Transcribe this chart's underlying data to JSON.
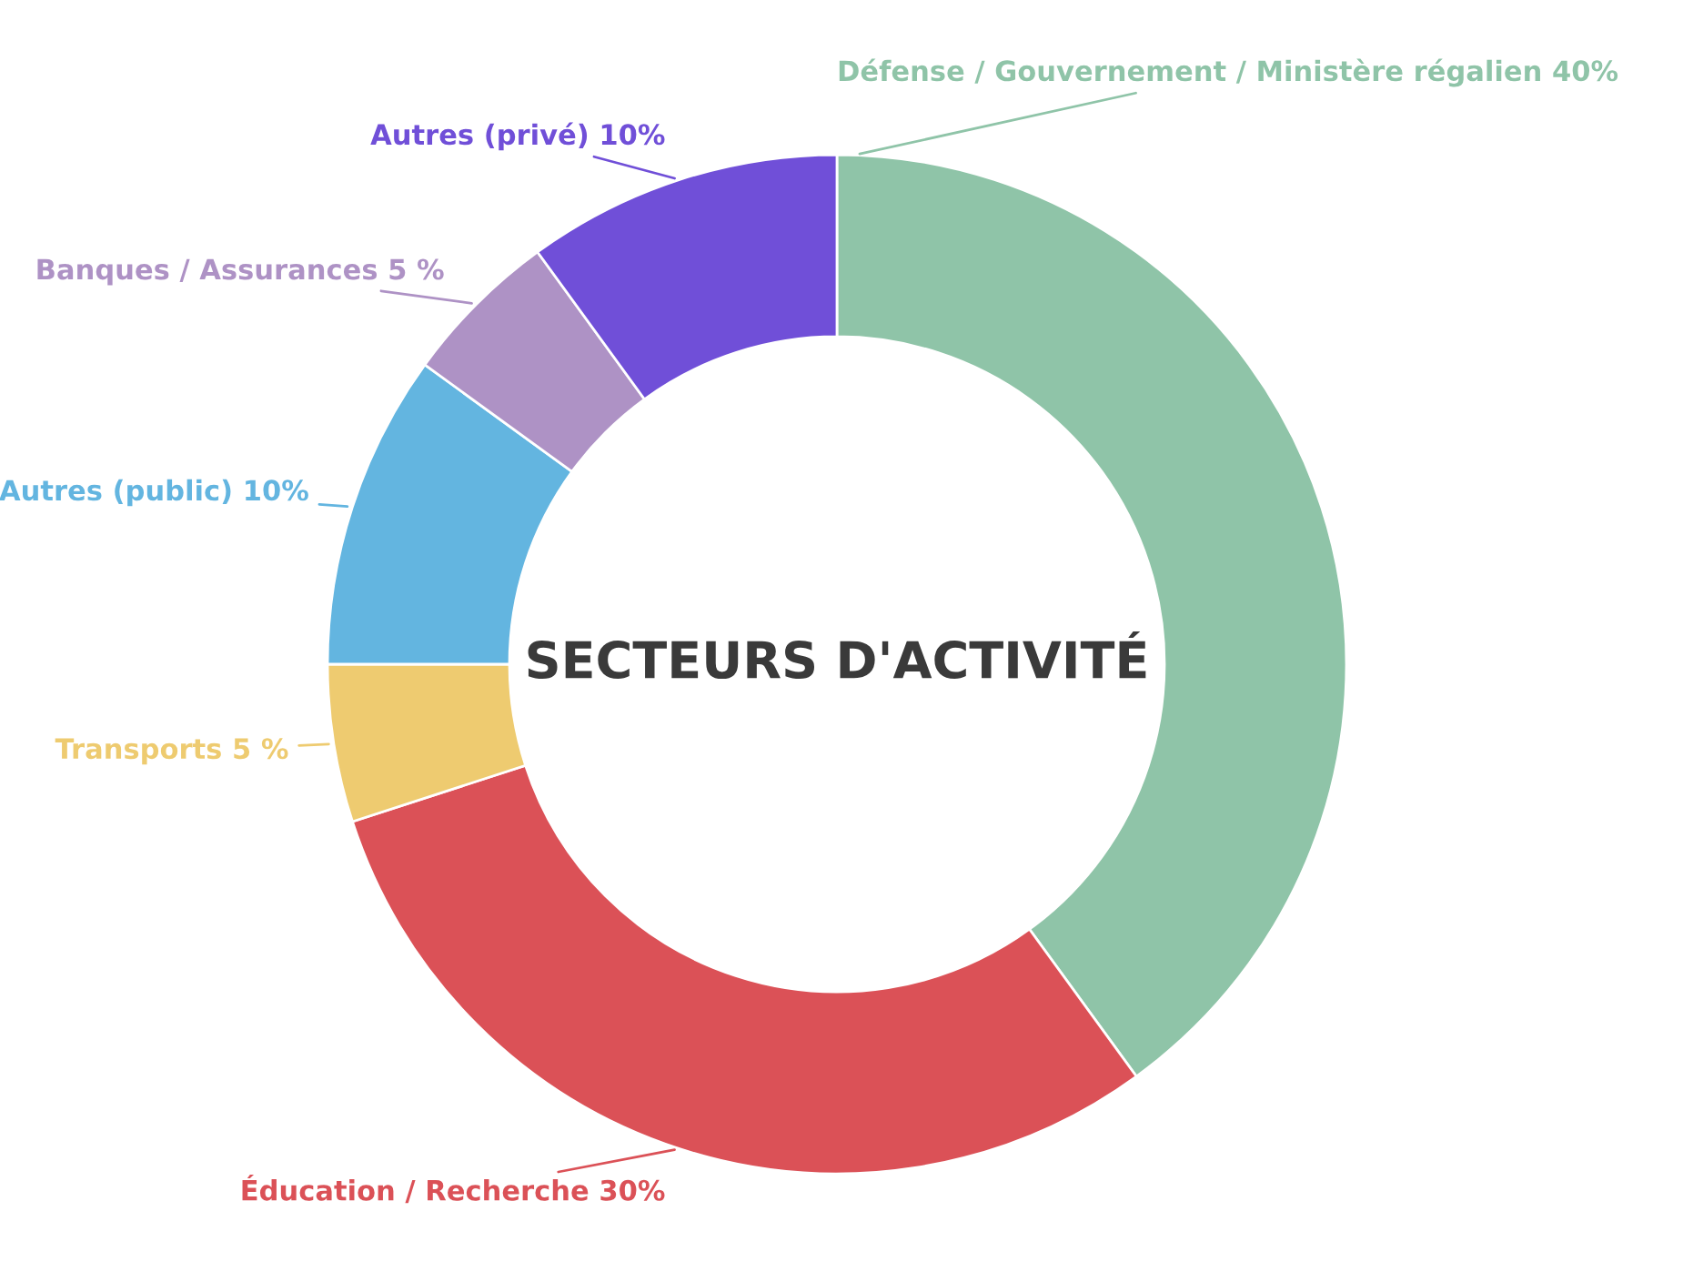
{
  "chart_data": {
    "type": "donut",
    "title": "SECTEURS D'ACTIVITÉ",
    "categories": [
      "Défense / Gouvernement / Ministère régalien",
      "Éducation / Recherche",
      "Transports",
      "Autres (public)",
      "Banques / Assurances",
      "Autres (privé)"
    ],
    "values": [
      40,
      30,
      5,
      10,
      5,
      10
    ],
    "value_labels": [
      "40%",
      "30%",
      "5 %",
      "10%",
      "5 %",
      "10%"
    ],
    "colors": [
      "#8fc4a8",
      "#db5157",
      "#eecb70",
      "#63b5e0",
      "#ae92c5",
      "#704fd8"
    ],
    "legend": false
  }
}
